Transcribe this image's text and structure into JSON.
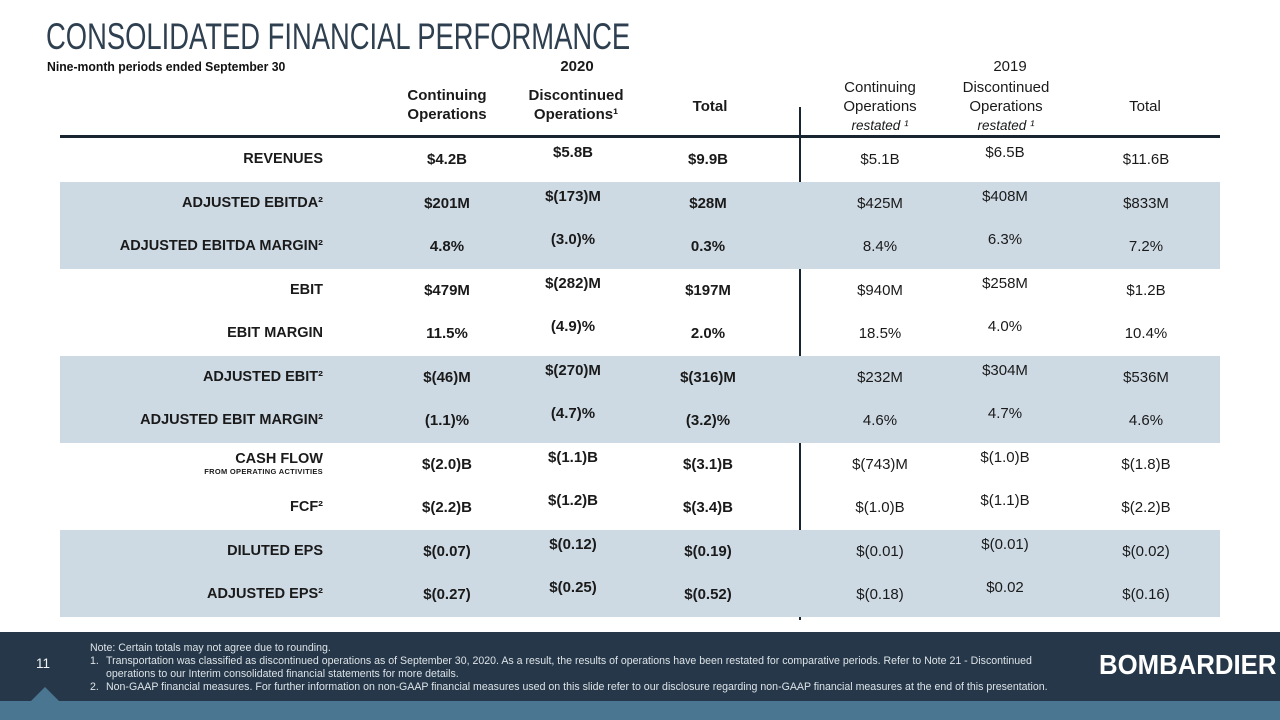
{
  "slide": {
    "title": "CONSOLIDATED FINANCIAL PERFORMANCE",
    "subtitle": "Nine-month periods ended September 30",
    "page_number": "11",
    "logo": "BOMBARDIER"
  },
  "colors": {
    "title_navy": "#2e3f50",
    "shaded_row": "#cdd9e3",
    "rule": "#18242f",
    "footer_bar": "#253748",
    "footer_strip": "#4b7691"
  },
  "table": {
    "year_groups": [
      {
        "label": "2020"
      },
      {
        "label": "2019"
      }
    ],
    "columns": [
      {
        "group": "2020",
        "title": "Continuing Operations",
        "restated": ""
      },
      {
        "group": "2020",
        "title": "Discontinued Operations¹",
        "restated": ""
      },
      {
        "group": "2020",
        "title": "Total",
        "restated": ""
      },
      {
        "group": "2019",
        "title": "Continuing Operations",
        "restated": "restated ¹"
      },
      {
        "group": "2019",
        "title": "Discontinued Operations",
        "restated": "restated ¹"
      },
      {
        "group": "2019",
        "title": "Total",
        "restated": ""
      }
    ],
    "rows": [
      {
        "label": "REVENUES",
        "sublabel": "",
        "shaded": false,
        "values": [
          "$4.2B",
          "$5.8B",
          "$9.9B",
          "$5.1B",
          "$6.5B",
          "$11.6B"
        ]
      },
      {
        "label": "ADJUSTED EBITDA²",
        "sublabel": "",
        "shaded": true,
        "values": [
          "$201M",
          "$(173)M",
          "$28M",
          "$425M",
          "$408M",
          "$833M"
        ]
      },
      {
        "label": "ADJUSTED EBITDA MARGIN²",
        "sublabel": "",
        "shaded": true,
        "values": [
          "4.8%",
          "(3.0)%",
          "0.3%",
          "8.4%",
          "6.3%",
          "7.2%"
        ]
      },
      {
        "label": "EBIT",
        "sublabel": "",
        "shaded": false,
        "values": [
          "$479M",
          "$(282)M",
          "$197M",
          "$940M",
          "$258M",
          "$1.2B"
        ]
      },
      {
        "label": "EBIT MARGIN",
        "sublabel": "",
        "shaded": false,
        "values": [
          "11.5%",
          "(4.9)%",
          "2.0%",
          "18.5%",
          "4.0%",
          "10.4%"
        ]
      },
      {
        "label": "ADJUSTED EBIT²",
        "sublabel": "",
        "shaded": true,
        "values": [
          "$(46)M",
          "$(270)M",
          "$(316)M",
          "$232M",
          "$304M",
          "$536M"
        ]
      },
      {
        "label": "ADJUSTED EBIT MARGIN²",
        "sublabel": "",
        "shaded": true,
        "values": [
          "(1.1)%",
          "(4.7)%",
          "(3.2)%",
          "4.6%",
          "4.7%",
          "4.6%"
        ]
      },
      {
        "label": "CASH FLOW",
        "sublabel": "FROM OPERATING ACTIVITIES",
        "shaded": false,
        "values": [
          "$(2.0)B",
          "$(1.1)B",
          "$(3.1)B",
          "$(743)M",
          "$(1.0)B",
          "$(1.8)B"
        ]
      },
      {
        "label": "FCF²",
        "sublabel": "",
        "shaded": false,
        "values": [
          "$(2.2)B",
          "$(1.2)B",
          "$(3.4)B",
          "$(1.0)B",
          "$(1.1)B",
          "$(2.2)B"
        ]
      },
      {
        "label": "DILUTED EPS",
        "sublabel": "",
        "shaded": true,
        "values": [
          "$(0.07)",
          "$(0.12)",
          "$(0.19)",
          "$(0.01)",
          "$(0.01)",
          "$(0.02)"
        ]
      },
      {
        "label": "ADJUSTED EPS²",
        "sublabel": "",
        "shaded": true,
        "values": [
          "$(0.27)",
          "$(0.25)",
          "$(0.52)",
          "$(0.18)",
          "$0.02",
          "$(0.16)"
        ]
      }
    ]
  },
  "footer": {
    "note": "Note: Certain totals may not agree due to rounding.",
    "footnotes": [
      {
        "num": "1.",
        "text": "Transportation was classified as discontinued operations as of September 30, 2020. As a result, the results of operations have been restated for comparative periods. Refer to Note 21 - Discontinued operations to our Interim consolidated financial statements for more details."
      },
      {
        "num": "2.",
        "text": "Non-GAAP financial measures. For further information on non-GAAP financial measures used on this slide refer to our disclosure regarding non-GAAP financial measures at the end of this presentation."
      }
    ]
  }
}
